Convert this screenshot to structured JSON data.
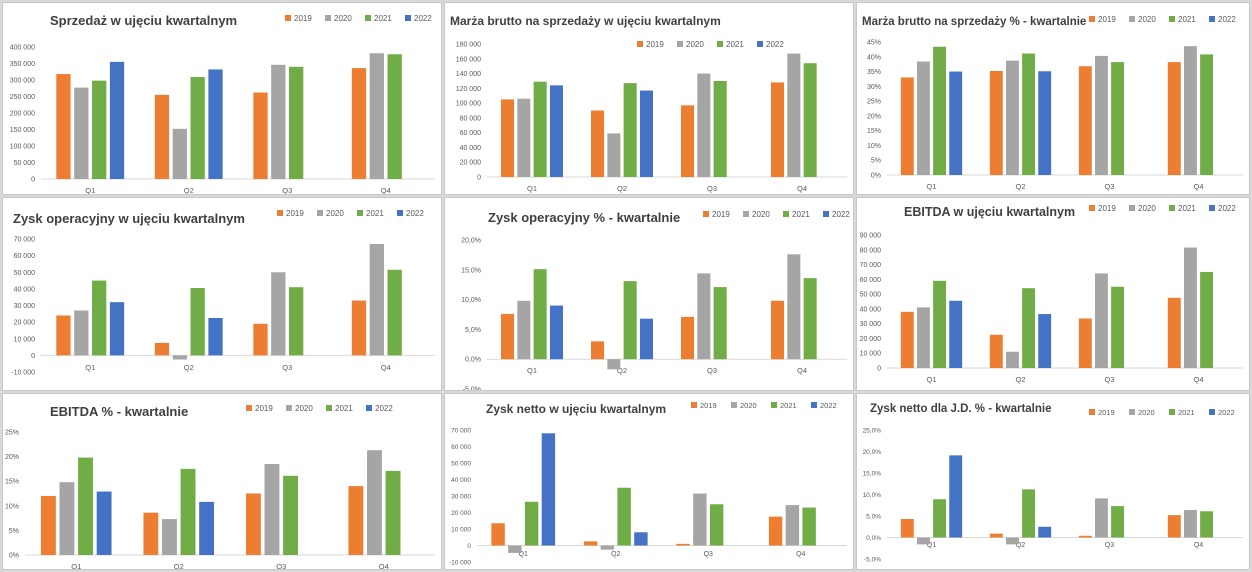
{
  "colors": {
    "2019": "#ed7d31",
    "2020": "#a5a5a5",
    "2021": "#70ad47",
    "2022": "#4472c4"
  },
  "chart_data": [
    {
      "type": "bar",
      "title": "Sprzedaż w ujęciu kwartalnym",
      "categories": [
        "Q1",
        "Q2",
        "Q3",
        "Q4"
      ],
      "series": [
        {
          "name": "2019",
          "values": [
            318000,
            255000,
            262000,
            336000
          ]
        },
        {
          "name": "2020",
          "values": [
            277000,
            152000,
            346000,
            381000
          ]
        },
        {
          "name": "2021",
          "values": [
            298000,
            309000,
            340000,
            378000
          ]
        },
        {
          "name": "2022",
          "values": [
            355000,
            332000,
            null,
            null
          ]
        }
      ],
      "ylim": [
        0,
        400000
      ],
      "yticks": [
        "0",
        "50 000",
        "100 000",
        "150 000",
        "200 000",
        "250 000",
        "300 000",
        "350 000",
        "400 000"
      ],
      "grid": false,
      "legend": "top-right"
    },
    {
      "type": "bar",
      "title": "Marża brutto na sprzedaży w ujęciu kwartalnym",
      "categories": [
        "Q1",
        "Q2",
        "Q3",
        "Q4"
      ],
      "series": [
        {
          "name": "2019",
          "values": [
            105000,
            90000,
            97000,
            128000
          ]
        },
        {
          "name": "2020",
          "values": [
            106000,
            59000,
            140000,
            167000
          ]
        },
        {
          "name": "2021",
          "values": [
            129000,
            127000,
            130000,
            154000
          ]
        },
        {
          "name": "2022",
          "values": [
            124000,
            117000,
            null,
            null
          ]
        }
      ],
      "ylim": [
        0,
        180000
      ],
      "yticks": [
        "0",
        "20 000",
        "40 000",
        "60 000",
        "80 000",
        "100 000",
        "120 000",
        "140 000",
        "160 000",
        "180 000"
      ],
      "grid": false,
      "legend": "top-right"
    },
    {
      "type": "bar",
      "title": "Marża brutto na sprzedaży % - kwartalnie",
      "categories": [
        "Q1",
        "Q2",
        "Q3",
        "Q4"
      ],
      "series": [
        {
          "name": "2019",
          "values": [
            33,
            35.2,
            36.8,
            38.2
          ]
        },
        {
          "name": "2020",
          "values": [
            38.4,
            38.7,
            40.3,
            43.6
          ]
        },
        {
          "name": "2021",
          "values": [
            43.4,
            41.1,
            38.2,
            40.8
          ]
        },
        {
          "name": "2022",
          "values": [
            35,
            35.1,
            null,
            null
          ]
        }
      ],
      "ylim": [
        0,
        45
      ],
      "yticks": [
        "0%",
        "5%",
        "10%",
        "15%",
        "20%",
        "25%",
        "30%",
        "35%",
        "40%",
        "45%"
      ],
      "grid": false,
      "legend": "top-right"
    },
    {
      "type": "bar",
      "title": "Zysk operacyjny w ujęciu kwartalnym",
      "categories": [
        "Q1",
        "Q2",
        "Q3",
        "Q4"
      ],
      "series": [
        {
          "name": "2019",
          "values": [
            24000,
            7500,
            19000,
            33000
          ]
        },
        {
          "name": "2020",
          "values": [
            27000,
            -2500,
            50000,
            67000
          ]
        },
        {
          "name": "2021",
          "values": [
            45000,
            40500,
            41000,
            51500
          ]
        },
        {
          "name": "2022",
          "values": [
            32000,
            22500,
            null,
            null
          ]
        }
      ],
      "ylim": [
        -10000,
        70000
      ],
      "yticks": [
        "-10 000",
        "0",
        "10 000",
        "20 000",
        "30 000",
        "40 000",
        "50 000",
        "60 000",
        "70 000"
      ],
      "grid": false,
      "legend": "top-right"
    },
    {
      "type": "bar",
      "title": "Zysk operacyjny % - kwartalnie",
      "categories": [
        "Q1",
        "Q2",
        "Q3",
        "Q4"
      ],
      "series": [
        {
          "name": "2019",
          "values": [
            7.6,
            3,
            7.1,
            9.8
          ]
        },
        {
          "name": "2020",
          "values": [
            9.8,
            -1.7,
            14.4,
            17.6
          ]
        },
        {
          "name": "2021",
          "values": [
            15.1,
            13.1,
            12.1,
            13.6
          ]
        },
        {
          "name": "2022",
          "values": [
            9,
            6.8,
            null,
            null
          ]
        }
      ],
      "ylim": [
        -5,
        20
      ],
      "yticks": [
        "-5,0%",
        "0,0%",
        "5,0%",
        "10,0%",
        "15,0%",
        "20,0%"
      ],
      "grid": false,
      "legend": "top-right"
    },
    {
      "type": "bar",
      "title": "EBITDA w ujęciu kwartalnym",
      "categories": [
        "Q1",
        "Q2",
        "Q3",
        "Q4"
      ],
      "series": [
        {
          "name": "2019",
          "values": [
            38000,
            22500,
            33500,
            47500
          ]
        },
        {
          "name": "2020",
          "values": [
            41000,
            11000,
            64000,
            81500
          ]
        },
        {
          "name": "2021",
          "values": [
            59000,
            54000,
            55000,
            65000
          ]
        },
        {
          "name": "2022",
          "values": [
            45500,
            36500,
            null,
            null
          ]
        }
      ],
      "ylim": [
        0,
        90000
      ],
      "yticks": [
        "0",
        "10 000",
        "20 000",
        "30 000",
        "40 000",
        "50 000",
        "60 000",
        "70 000",
        "80 000",
        "90 000"
      ],
      "grid": false,
      "legend": "top-right"
    },
    {
      "type": "bar",
      "title": "EBITDA % - kwartalnie",
      "categories": [
        "Q1",
        "Q2",
        "Q3",
        "Q4"
      ],
      "series": [
        {
          "name": "2019",
          "values": [
            12,
            8.6,
            12.5,
            14
          ]
        },
        {
          "name": "2020",
          "values": [
            14.8,
            7.3,
            18.5,
            21.3
          ]
        },
        {
          "name": "2021",
          "values": [
            19.8,
            17.5,
            16.1,
            17.1
          ]
        },
        {
          "name": "2022",
          "values": [
            12.9,
            10.8,
            null,
            null
          ]
        }
      ],
      "ylim": [
        0,
        25
      ],
      "yticks": [
        "0%",
        "5%",
        "10%",
        "15%",
        "20%",
        "25%"
      ],
      "grid": false,
      "legend": "top-right"
    },
    {
      "type": "bar",
      "title": "Zysk netto w ujęciu kwartalnym",
      "categories": [
        "Q1",
        "Q2",
        "Q3",
        "Q4"
      ],
      "series": [
        {
          "name": "2019",
          "values": [
            13500,
            2500,
            1000,
            17500
          ]
        },
        {
          "name": "2020",
          "values": [
            -4500,
            -2500,
            31500,
            24500
          ]
        },
        {
          "name": "2021",
          "values": [
            26500,
            35000,
            25000,
            23000
          ]
        },
        {
          "name": "2022",
          "values": [
            68000,
            8000,
            null,
            null
          ]
        }
      ],
      "ylim": [
        -10000,
        70000
      ],
      "yticks": [
        "-10 000",
        "0",
        "10 000",
        "20 000",
        "30 000",
        "40 000",
        "50 000",
        "60 000",
        "70 000"
      ],
      "grid": false,
      "legend": "top-right"
    },
    {
      "type": "bar",
      "title": "Zysk netto dla J.D. % - kwartalnie",
      "categories": [
        "Q1",
        "Q2",
        "Q3",
        "Q4"
      ],
      "series": [
        {
          "name": "2019",
          "values": [
            4.3,
            0.9,
            0.4,
            5.2
          ]
        },
        {
          "name": "2020",
          "values": [
            -1.6,
            -1.6,
            9.1,
            6.4
          ]
        },
        {
          "name": "2021",
          "values": [
            8.9,
            11.2,
            7.3,
            6.1
          ]
        },
        {
          "name": "2022",
          "values": [
            19.1,
            2.5,
            null,
            null
          ]
        }
      ],
      "ylim": [
        -5,
        25
      ],
      "yticks": [
        "-5,0%",
        "0,0%",
        "5,0%",
        "10,0%",
        "15,0%",
        "20,0%",
        "25,0%"
      ],
      "grid": false,
      "legend": "top-right"
    }
  ]
}
